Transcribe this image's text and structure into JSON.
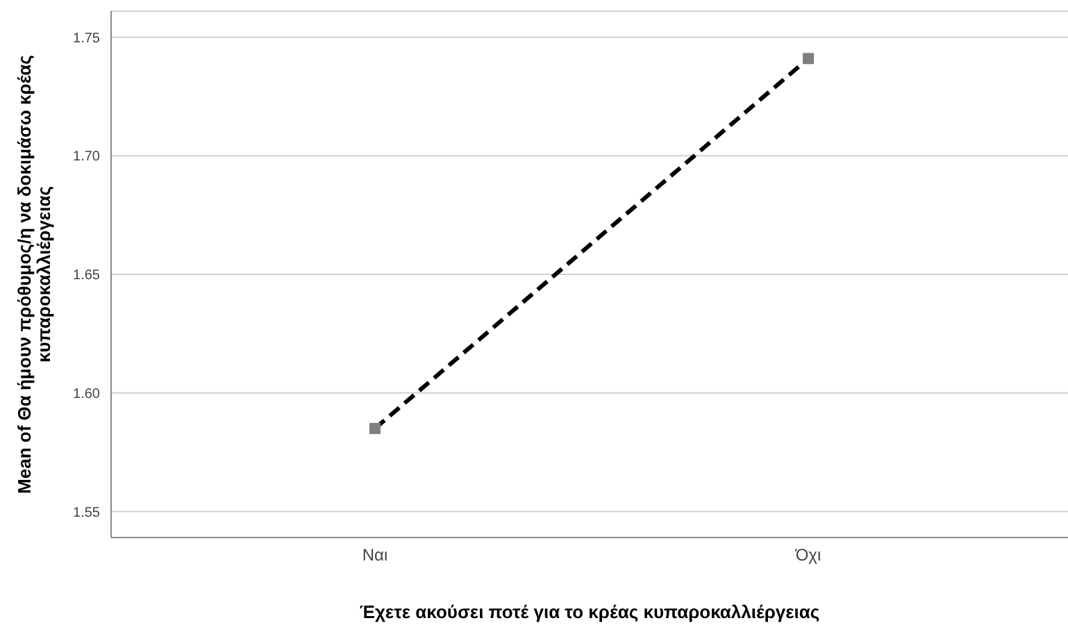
{
  "chart_data": {
    "type": "line",
    "xlabel": "Έχετε ακούσει ποτέ για το κρέας κυπαροκαλλιέργειας",
    "ylabel": "Mean of Θα ήμουν πρόθυμος/η να δοκιμάσω κρέας κυπαροκαλλιέργειας",
    "categories": [
      "Ναι",
      "Όχι"
    ],
    "series": [
      {
        "color": "#000000",
        "values": [
          1.585,
          1.741
        ]
      }
    ],
    "ylim": [
      1.539,
      1.761
    ],
    "yticks": [
      {
        "value": 1.55,
        "label": "1.55"
      },
      {
        "value": 1.6,
        "label": "1.60"
      },
      {
        "value": 1.65,
        "label": "1.65"
      },
      {
        "value": 1.7,
        "label": "1.70"
      },
      {
        "value": 1.75,
        "label": "1.75"
      }
    ],
    "grid": "y",
    "marker": "square",
    "line_style": "dashed"
  }
}
